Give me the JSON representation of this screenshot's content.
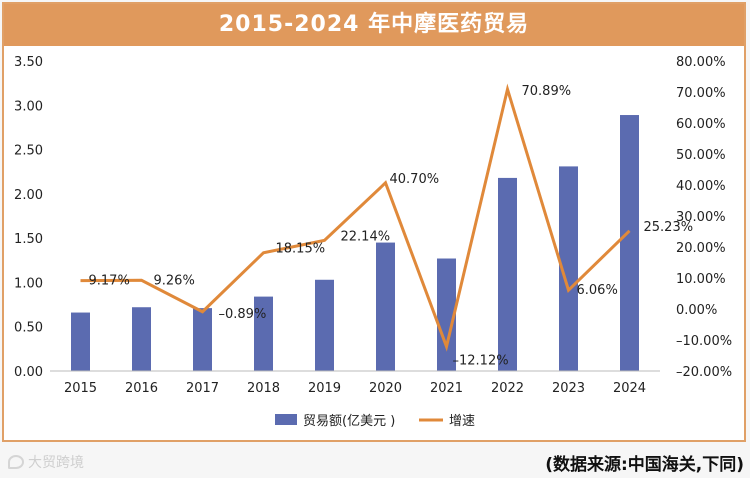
{
  "chart_data": {
    "type": "bar+line",
    "title": "2015-2024 年中摩医药贸易",
    "categories": [
      "2015",
      "2016",
      "2017",
      "2018",
      "2019",
      "2020",
      "2021",
      "2022",
      "2023",
      "2024"
    ],
    "series": [
      {
        "name": "贸易额(亿美元 )",
        "type": "bar",
        "axis": "left",
        "values": [
          0.66,
          0.72,
          0.71,
          0.84,
          1.03,
          1.45,
          1.27,
          2.18,
          2.31,
          2.89
        ]
      },
      {
        "name": "增速",
        "type": "line",
        "axis": "right",
        "values": [
          9.17,
          9.26,
          -0.89,
          18.15,
          22.14,
          40.7,
          -12.12,
          70.89,
          6.06,
          25.23
        ],
        "labels": [
          "9.17%",
          "9.26%",
          "–0.89%",
          "18.15%",
          "22.14%",
          "40.70%",
          "–12.12%",
          "70.89%",
          "6.06%",
          "25.23%"
        ]
      }
    ],
    "left_axis": {
      "min": 0,
      "max": 3.5,
      "ticks": [
        "0.00",
        "0.50",
        "1.00",
        "1.50",
        "2.00",
        "2.50",
        "3.00",
        "3.50"
      ]
    },
    "right_axis": {
      "min": -20,
      "max": 80,
      "ticks": [
        "–20.00%",
        "–10.00%",
        "0.00%",
        "10.00%",
        "20.00%",
        "30.00%",
        "40.00%",
        "50.00%",
        "60.00%",
        "70.00%",
        "80.00%"
      ]
    },
    "grid": false,
    "legend_position": "bottom",
    "colors": {
      "bar": "#5b6bb0",
      "line": "#e0893a",
      "title_bg": "#e0995c",
      "frame": "#e0a067"
    }
  },
  "footer": {
    "source": "(数据来源:中国海关,下同)",
    "watermark": "大贸跨境"
  }
}
